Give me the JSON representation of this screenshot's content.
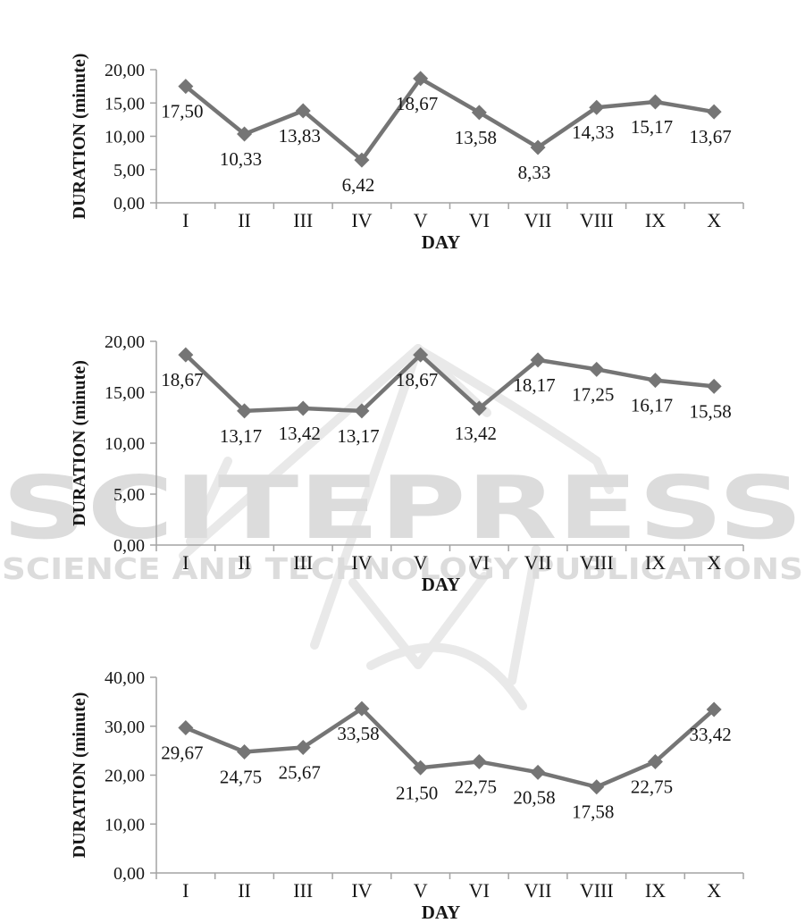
{
  "watermark": {
    "brand": "SCITEPRESS",
    "tagline": "SCIENCE AND TECHNOLOGY PUBLICATIONS",
    "color": "#dcdcdc"
  },
  "style": {
    "line_color": "#757575",
    "marker_color": "#757575",
    "axis_color": "#a3a3a3",
    "text_color": "#161616",
    "background": "#ffffff"
  },
  "chart_data": [
    {
      "type": "line",
      "title": "",
      "xlabel": "DAY",
      "ylabel": "DURATION (minute)",
      "categories": [
        "I",
        "II",
        "III",
        "IV",
        "V",
        "VI",
        "VII",
        "VIII",
        "IX",
        "X"
      ],
      "values": [
        17.5,
        10.33,
        13.83,
        6.42,
        18.67,
        13.58,
        8.33,
        14.33,
        15.17,
        13.67
      ],
      "point_labels": [
        "17,50",
        "10,33",
        "13,83",
        "6,42",
        "18,67",
        "13,58",
        "8,33",
        "14,33",
        "15,17",
        "13,67"
      ],
      "ylim": [
        0,
        20
      ],
      "yticks": {
        "values": [
          0,
          5,
          10,
          15,
          20
        ],
        "labels": [
          "0,00",
          "5,00",
          "10,00",
          "15,00",
          "20,00"
        ]
      },
      "grid": false,
      "legend": null,
      "marker": "diamond"
    },
    {
      "type": "line",
      "title": "",
      "xlabel": "DAY",
      "ylabel": "DURATION (minute)",
      "categories": [
        "I",
        "II",
        "III",
        "IV",
        "V",
        "VI",
        "VII",
        "VIII",
        "IX",
        "X"
      ],
      "values": [
        18.67,
        13.17,
        13.42,
        13.17,
        18.67,
        13.42,
        18.17,
        17.25,
        16.17,
        15.58
      ],
      "point_labels": [
        "18,67",
        "13,17",
        "13,42",
        "13,17",
        "18,67",
        "13,42",
        "18,17",
        "17,25",
        "16,17",
        "15,58"
      ],
      "ylim": [
        0,
        20
      ],
      "yticks": {
        "values": [
          0,
          5,
          10,
          15,
          20
        ],
        "labels": [
          "0,00",
          "5,00",
          "10,00",
          "15,00",
          "20,00"
        ]
      },
      "grid": false,
      "legend": null,
      "marker": "diamond"
    },
    {
      "type": "line",
      "title": "",
      "xlabel": "DAY",
      "ylabel": "DURATION (minute)",
      "categories": [
        "I",
        "II",
        "III",
        "IV",
        "V",
        "VI",
        "VII",
        "VIII",
        "IX",
        "X"
      ],
      "values": [
        29.67,
        24.75,
        25.67,
        33.58,
        21.5,
        22.75,
        20.58,
        17.58,
        22.75,
        33.42
      ],
      "point_labels": [
        "29,67",
        "24,75",
        "25,67",
        "33,58",
        "21,50",
        "22,75",
        "20,58",
        "17,58",
        "22,75",
        "33,42"
      ],
      "ylim": [
        0,
        40
      ],
      "yticks": {
        "values": [
          0,
          10,
          20,
          30,
          40
        ],
        "labels": [
          "0,00",
          "10,00",
          "20,00",
          "30,00",
          "40,00"
        ]
      },
      "grid": false,
      "legend": null,
      "marker": "diamond"
    }
  ]
}
